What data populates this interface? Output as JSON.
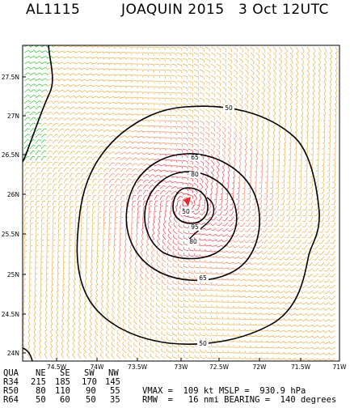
{
  "header": {
    "storm_id": "AL1115",
    "storm_name": "JOAQUIN 2015",
    "date": "3 Oct 12UTC"
  },
  "map": {
    "lat_labels": [
      "27.5N",
      "27N",
      "26.5N",
      "26N",
      "25.5N",
      "25N",
      "24.5N",
      "24N"
    ],
    "lon_labels": [
      "74.5W",
      "74W",
      "73.5W",
      "73W",
      "72.5W",
      "72W",
      "71.5W",
      "71W"
    ],
    "contour_labels": [
      "50",
      "65",
      "80",
      "50",
      "95",
      "80",
      "65",
      "50"
    ],
    "colors": {
      "wind_low": "#e8b04a",
      "wind_mid": "#f08a60",
      "wind_high": "#ee4a50",
      "wind_core": "#e02a30",
      "land": "#2ec02e",
      "contour": "#000000"
    }
  },
  "stats": {
    "table_headers": [
      "QUA",
      "NE",
      "SE",
      "SW",
      "NW"
    ],
    "rows": [
      {
        "label": "R34",
        "values": [
          "215",
          "185",
          "170",
          "145"
        ]
      },
      {
        "label": "R50",
        "values": [
          "80",
          "110",
          "90",
          "55"
        ]
      },
      {
        "label": "R64",
        "values": [
          "50",
          "60",
          "50",
          "35"
        ]
      }
    ],
    "vmax_line": "VMAX =  109 kt MSLP =  930.9 hPa",
    "rmw_line": "RMW  =   16 nmi BEARING =  140 degrees"
  }
}
